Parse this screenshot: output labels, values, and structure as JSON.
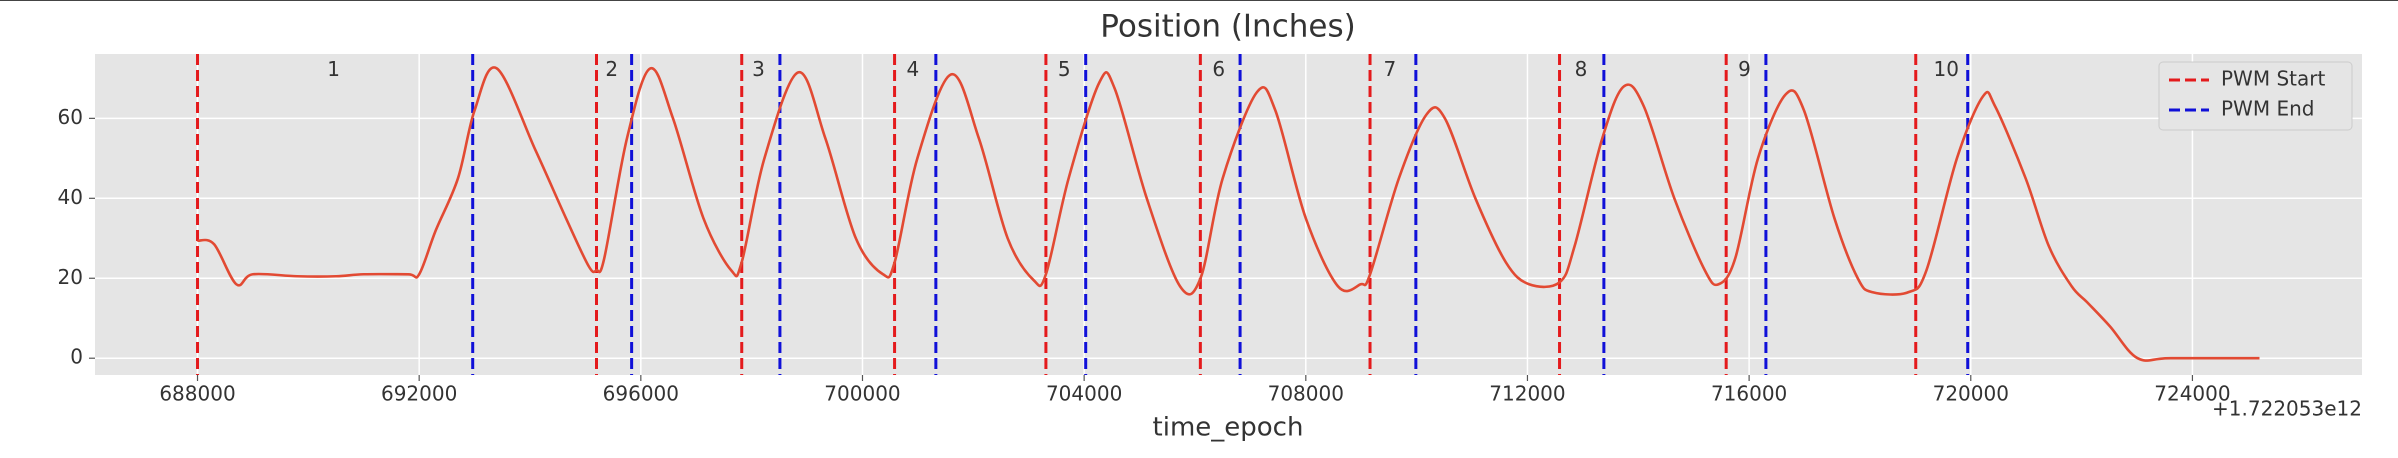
{
  "chart_data": {
    "type": "line",
    "title": "Position (Inches)",
    "xlabel": "time_epoch",
    "x_offset_label": "+1.722053e12",
    "grid": true,
    "legend": "upper right",
    "xlim": [
      686150,
      727060
    ],
    "ylim": [
      -4.2,
      76.1
    ],
    "xticks": [
      688000,
      692000,
      696000,
      700000,
      704000,
      708000,
      712000,
      716000,
      720000,
      724000
    ],
    "yticks": [
      0,
      20,
      40,
      60
    ],
    "x": [
      688000,
      688300,
      688700,
      689000,
      689800,
      690500,
      691000,
      691800,
      692000,
      692300,
      692700,
      693000,
      693400,
      694100,
      694650,
      695060,
      695200,
      695340,
      695750,
      696170,
      696580,
      697130,
      697630,
      697820,
      698230,
      698840,
      699330,
      699880,
      700370,
      700580,
      700990,
      701600,
      702100,
      702620,
      703090,
      703310,
      703720,
      704275,
      704550,
      705130,
      705730,
      706100,
      706500,
      707115,
      707450,
      708000,
      708580,
      708990,
      709160,
      709680,
      710180,
      710510,
      711060,
      711610,
      712030,
      712580,
      712850,
      713350,
      713740,
      714100,
      714650,
      715200,
      715450,
      715750,
      716160,
      716660,
      716990,
      717540,
      717960,
      718230,
      718870,
      719200,
      719750,
      720220,
      720440,
      720990,
      721410,
      721820,
      722100,
      722510,
      723010,
      723610,
      725210
    ],
    "series": [
      {
        "color": "#e24a33",
        "values": [
          29.4,
          28.5,
          18.5,
          21,
          20.5,
          20.5,
          21,
          21,
          21,
          32,
          45,
          62,
          72.5,
          52,
          35,
          23,
          22,
          25,
          55,
          72.5,
          60,
          35,
          22,
          24,
          50,
          71.5,
          55,
          30,
          21,
          24,
          50,
          71,
          55,
          30,
          19.5,
          21,
          45,
          69,
          67.5,
          40,
          18,
          20,
          45,
          66.5,
          62,
          35,
          18,
          18.5,
          21,
          45,
          61,
          60,
          40,
          24,
          18.5,
          19,
          28,
          55,
          68,
          63,
          40,
          22,
          18.5,
          25,
          50,
          66,
          62,
          35,
          20,
          16.5,
          16.5,
          22,
          50,
          65.5,
          63,
          45,
          28,
          18,
          14,
          8,
          0,
          0,
          0
        ]
      }
    ],
    "vlines": [
      {
        "name": "PWM Start",
        "color": "#e41a1c",
        "x": [
          688000,
          695200,
          697821,
          700579,
          703310,
          706097,
          709159,
          712579,
          715586,
          719007
        ]
      },
      {
        "name": "PWM End",
        "color": "#1010d8",
        "x": [
          692966,
          695834,
          698510,
          701324,
          704028,
          706814,
          709986,
          713379,
          716303,
          719945
        ]
      }
    ],
    "annotations": [
      {
        "text": "1",
        "x": 690455,
        "y": 72
      },
      {
        "text": "2",
        "x": 695476,
        "y": 72
      },
      {
        "text": "3",
        "x": 698124,
        "y": 72
      },
      {
        "text": "4",
        "x": 700910,
        "y": 72
      },
      {
        "text": "5",
        "x": 703641,
        "y": 72
      },
      {
        "text": "6",
        "x": 706428,
        "y": 72
      },
      {
        "text": "7",
        "x": 709517,
        "y": 72
      },
      {
        "text": "8",
        "x": 712966,
        "y": 72
      },
      {
        "text": "9",
        "x": 715917,
        "y": 72
      },
      {
        "text": "10",
        "x": 719558,
        "y": 72
      }
    ]
  }
}
